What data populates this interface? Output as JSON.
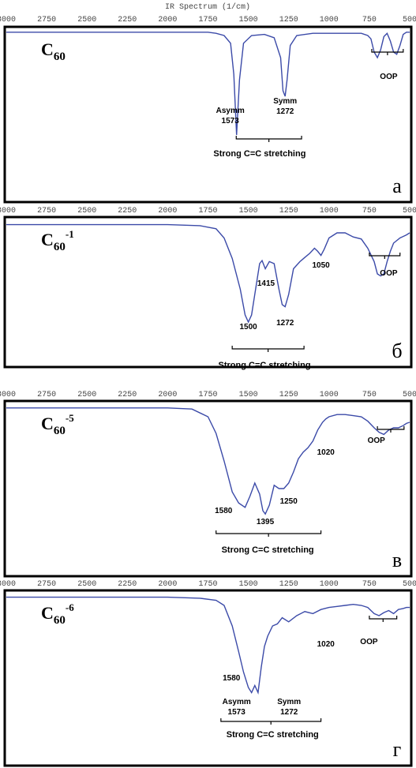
{
  "figure_title": "IR Spectrum (1/cm)",
  "x_ticks": [
    "3000",
    "2750",
    "2500",
    "2250",
    "2000",
    "1750",
    "1500",
    "1250",
    "1000",
    "750",
    "500"
  ],
  "chart_data": [
    {
      "type": "line",
      "title": "C60",
      "title_base": "C",
      "title_sub": "60",
      "title_sup": "",
      "panel_letter": "а",
      "xlabel": "IR Spectrum (1/cm)",
      "xlim": [
        3000,
        500
      ],
      "x_ticks": [
        3000,
        2750,
        2500,
        2250,
        2000,
        1750,
        1500,
        1250,
        1000,
        750,
        500
      ],
      "peaks": [
        {
          "label": "Asymm",
          "x": 1573
        },
        {
          "label": "Symm",
          "x": 1272
        }
      ],
      "annotations": [
        {
          "text": "Asymm",
          "x": 1573
        },
        {
          "text": "1573",
          "x": 1573
        },
        {
          "text": "Symm",
          "x": 1272
        },
        {
          "text": "1272",
          "x": 1272
        },
        {
          "text": "OOP",
          "x": 630
        },
        {
          "text": "Strong C=C stretching",
          "x": 1430
        }
      ],
      "series": [
        {
          "x": [
            3000,
            2750,
            2500,
            2250,
            2000,
            1750,
            1700,
            1650,
            1610,
            1590,
            1573,
            1555,
            1530,
            1480,
            1400,
            1340,
            1300,
            1285,
            1272,
            1260,
            1240,
            1200,
            1100,
            1000,
            900,
            800,
            760,
            740,
            720,
            700,
            680,
            660,
            640,
            620,
            600,
            580,
            560,
            540,
            520,
            500
          ],
          "y": [
            0.98,
            0.98,
            0.98,
            0.98,
            0.98,
            0.98,
            0.97,
            0.95,
            0.88,
            0.6,
            0.05,
            0.55,
            0.88,
            0.95,
            0.96,
            0.93,
            0.75,
            0.45,
            0.4,
            0.55,
            0.86,
            0.95,
            0.97,
            0.97,
            0.97,
            0.97,
            0.95,
            0.92,
            0.8,
            0.75,
            0.82,
            0.94,
            0.97,
            0.9,
            0.8,
            0.78,
            0.86,
            0.96,
            0.98,
            0.98
          ]
        }
      ]
    },
    {
      "type": "line",
      "title": "C60-1",
      "title_base": "C",
      "title_sub": "60",
      "title_sup": "-1",
      "panel_letter": "б",
      "xlabel": "",
      "xlim": [
        3000,
        500
      ],
      "x_ticks": [
        3000,
        2750,
        2500,
        2250,
        2000,
        1750,
        1500,
        1250,
        1000,
        750,
        500
      ],
      "annotations": [
        {
          "text": "1415",
          "x": 1415
        },
        {
          "text": "1050",
          "x": 1050
        },
        {
          "text": "1500",
          "x": 1500
        },
        {
          "text": "1272",
          "x": 1272
        },
        {
          "text": "OOP",
          "x": 630
        },
        {
          "text": "Strong C=C stretching",
          "x": 1400
        }
      ],
      "series": [
        {
          "x": [
            3000,
            2500,
            2000,
            1800,
            1700,
            1650,
            1600,
            1550,
            1520,
            1500,
            1480,
            1450,
            1430,
            1415,
            1395,
            1370,
            1340,
            1310,
            1290,
            1272,
            1250,
            1220,
            1180,
            1150,
            1120,
            1090,
            1070,
            1050,
            1030,
            1000,
            950,
            900,
            850,
            800,
            760,
            720,
            700,
            680,
            660,
            640,
            620,
            600,
            560,
            520,
            500
          ],
          "y": [
            0.98,
            0.98,
            0.98,
            0.97,
            0.94,
            0.85,
            0.65,
            0.35,
            0.1,
            0.03,
            0.1,
            0.4,
            0.6,
            0.63,
            0.55,
            0.62,
            0.6,
            0.35,
            0.2,
            0.18,
            0.3,
            0.55,
            0.62,
            0.66,
            0.7,
            0.75,
            0.72,
            0.68,
            0.74,
            0.85,
            0.9,
            0.9,
            0.86,
            0.84,
            0.75,
            0.62,
            0.5,
            0.48,
            0.5,
            0.62,
            0.72,
            0.8,
            0.85,
            0.88,
            0.9
          ]
        }
      ]
    },
    {
      "type": "line",
      "title": "C60-5",
      "title_base": "C",
      "title_sub": "60",
      "title_sup": "-5",
      "panel_letter": "в",
      "xlabel": "",
      "xlim": [
        3000,
        500
      ],
      "x_ticks": [
        3000,
        2750,
        2500,
        2250,
        2000,
        1750,
        1500,
        1250,
        1000,
        750,
        500
      ],
      "annotations": [
        {
          "text": "1020",
          "x": 1020
        },
        {
          "text": "1580",
          "x": 1580
        },
        {
          "text": "1395",
          "x": 1395
        },
        {
          "text": "1250",
          "x": 1250
        },
        {
          "text": "OOP",
          "x": 560
        },
        {
          "text": "Strong C=C stretching",
          "x": 1380
        }
      ],
      "series": [
        {
          "x": [
            3000,
            2500,
            2000,
            1850,
            1750,
            1700,
            1650,
            1600,
            1560,
            1520,
            1490,
            1460,
            1430,
            1410,
            1395,
            1370,
            1340,
            1310,
            1280,
            1250,
            1220,
            1190,
            1160,
            1130,
            1100,
            1070,
            1040,
            1020,
            1000,
            950,
            900,
            850,
            800,
            760,
            720,
            690,
            660,
            630,
            600,
            570,
            540,
            520,
            500
          ],
          "y": [
            0.98,
            0.98,
            0.98,
            0.97,
            0.9,
            0.75,
            0.5,
            0.22,
            0.12,
            0.08,
            0.18,
            0.3,
            0.2,
            0.05,
            0.02,
            0.1,
            0.28,
            0.25,
            0.25,
            0.3,
            0.4,
            0.52,
            0.58,
            0.62,
            0.68,
            0.78,
            0.85,
            0.88,
            0.9,
            0.92,
            0.92,
            0.91,
            0.9,
            0.86,
            0.8,
            0.76,
            0.74,
            0.78,
            0.8,
            0.8,
            0.82,
            0.84,
            0.85
          ]
        }
      ]
    },
    {
      "type": "line",
      "title": "C60-6",
      "title_base": "C",
      "title_sub": "60",
      "title_sup": "-6",
      "panel_letter": "г",
      "xlabel": "",
      "xlim": [
        3000,
        500
      ],
      "x_ticks": [
        3000,
        2750,
        2500,
        2250,
        2000,
        1750,
        1500,
        1250,
        1000,
        750,
        500
      ],
      "annotations": [
        {
          "text": "1020",
          "x": 1020
        },
        {
          "text": "1580",
          "x": 1580
        },
        {
          "text": "Asymm",
          "x": 1573
        },
        {
          "text": "1573",
          "x": 1573
        },
        {
          "text": "Symm",
          "x": 1272
        },
        {
          "text": "1272",
          "x": 1272
        },
        {
          "text": "OOP",
          "x": 630
        },
        {
          "text": "Strong C=C stretching",
          "x": 1350
        }
      ],
      "series": [
        {
          "x": [
            3000,
            2500,
            2000,
            1800,
            1700,
            1650,
            1600,
            1560,
            1530,
            1500,
            1480,
            1460,
            1440,
            1420,
            1400,
            1380,
            1350,
            1320,
            1290,
            1250,
            1200,
            1150,
            1100,
            1050,
            1000,
            950,
            900,
            850,
            800,
            760,
            720,
            690,
            660,
            630,
            600,
            570,
            540,
            520,
            500
          ],
          "y": [
            0.98,
            0.98,
            0.98,
            0.97,
            0.95,
            0.9,
            0.7,
            0.45,
            0.25,
            0.1,
            0.05,
            0.12,
            0.05,
            0.3,
            0.5,
            0.6,
            0.7,
            0.72,
            0.78,
            0.74,
            0.8,
            0.84,
            0.82,
            0.86,
            0.88,
            0.89,
            0.9,
            0.91,
            0.9,
            0.88,
            0.82,
            0.8,
            0.83,
            0.85,
            0.82,
            0.86,
            0.87,
            0.88,
            0.88
          ]
        }
      ]
    }
  ],
  "colors": {
    "curve": "#3b4aa8",
    "frame": "#000000",
    "axis_text": "#444444",
    "label_text": "#000000"
  }
}
